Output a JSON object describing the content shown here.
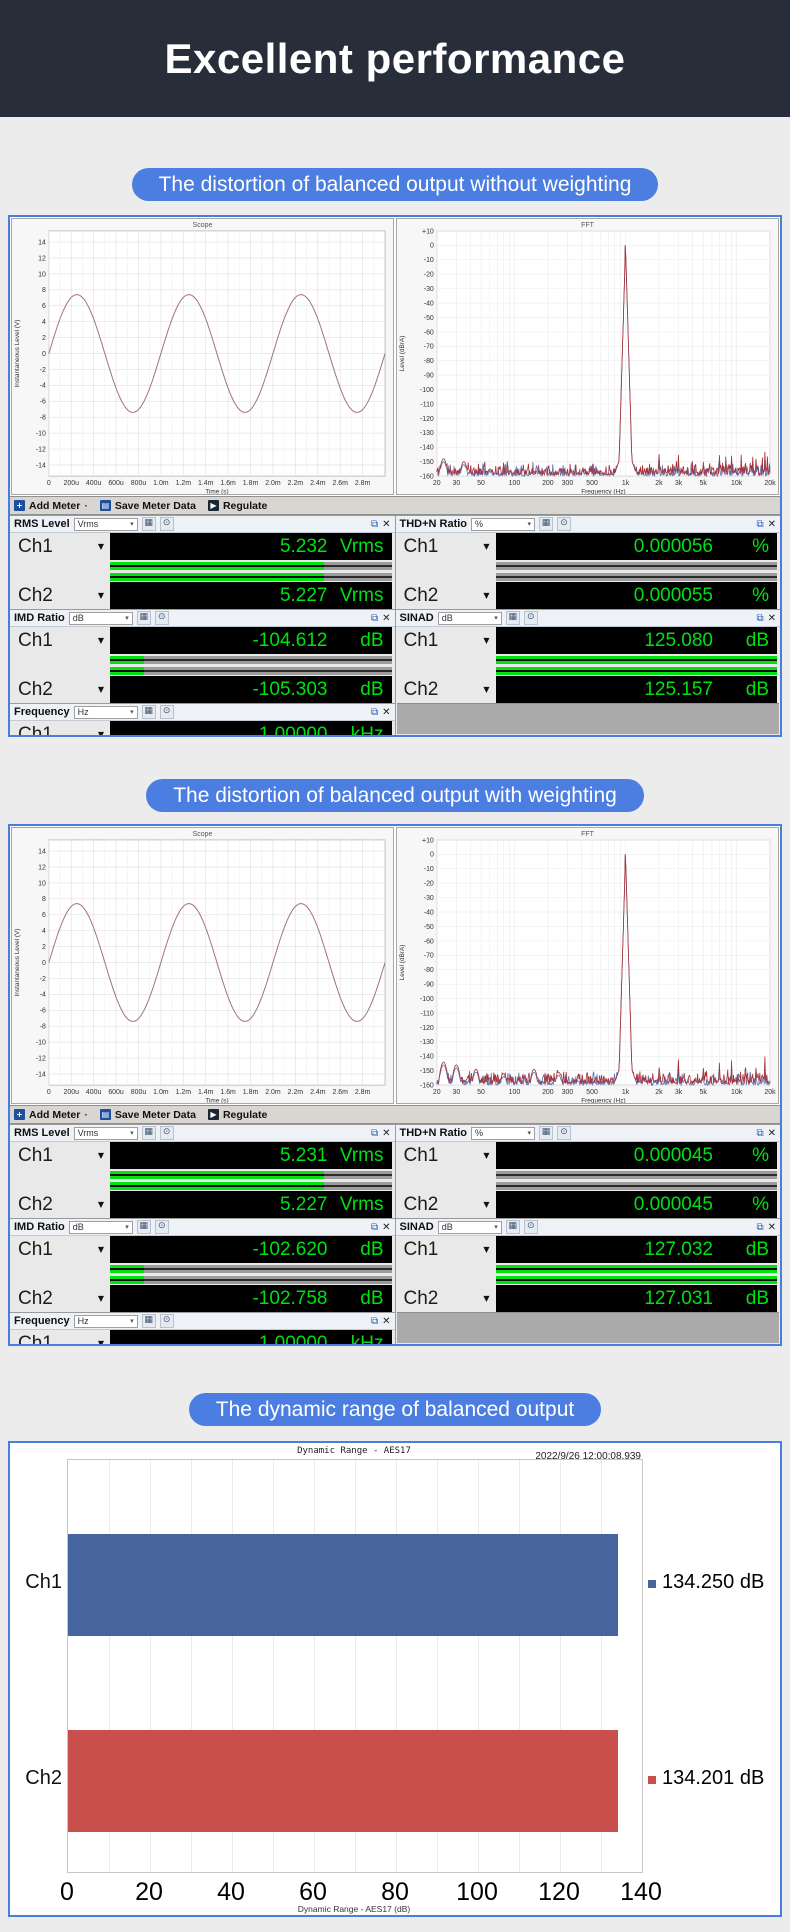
{
  "header": {
    "title": "Excellent performance",
    "background": "#272e3a"
  },
  "theme": {
    "pill_color": "#4c7de0",
    "panel_border": "#4a7edd",
    "lcd_green": "#00e012",
    "page_bg": "#ececec"
  },
  "toolbar": {
    "items": [
      {
        "icon": "add-meter-icon",
        "label": "Add Meter",
        "trailing": "·"
      },
      {
        "icon": "save-meter-icon",
        "label": "Save Meter Data",
        "trailing": ""
      },
      {
        "icon": "regulate-icon",
        "label": "Regulate",
        "trailing": ""
      }
    ]
  },
  "sections": [
    {
      "pill": "The distortion of balanced output without weighting",
      "scope_chart": "scope-unweighted",
      "fft_chart": "fft-unweighted",
      "meters_left": [
        {
          "name": "RMS Level",
          "unit": "Vrms",
          "rows": [
            {
              "ch": "Ch1",
              "value": "5.232",
              "unit": "Vrms",
              "fill": 0.76
            },
            {
              "ch": "Ch2",
              "value": "5.227",
              "unit": "Vrms",
              "fill": 0.76
            }
          ]
        },
        {
          "name": "IMD Ratio",
          "unit": "dB",
          "rows": [
            {
              "ch": "Ch1",
              "value": "-104.612",
              "unit": "dB",
              "fill": 0.12
            },
            {
              "ch": "Ch2",
              "value": "-105.303",
              "unit": "dB",
              "fill": 0.12
            }
          ]
        },
        {
          "name": "Frequency",
          "unit": "Hz",
          "partial": true,
          "rows": [
            {
              "ch": "Ch1",
              "value": "1.00000",
              "unit": "kHz",
              "fill": 0
            }
          ]
        }
      ],
      "meters_right": [
        {
          "name": "THD+N Ratio",
          "unit": "%",
          "rows": [
            {
              "ch": "Ch1",
              "value": "0.000056",
              "unit": "%",
              "fill": 0
            },
            {
              "ch": "Ch2",
              "value": "0.000055",
              "unit": "%",
              "fill": 0
            }
          ]
        },
        {
          "name": "SINAD",
          "unit": "dB",
          "rows": [
            {
              "ch": "Ch1",
              "value": "125.080",
              "unit": "dB",
              "fill": 1
            },
            {
              "ch": "Ch2",
              "value": "125.157",
              "unit": "dB",
              "fill": 1
            }
          ]
        },
        {
          "empty": true
        }
      ]
    },
    {
      "pill": "The distortion of balanced output with weighting",
      "scope_chart": "scope-weighted",
      "fft_chart": "fft-weighted",
      "meters_left": [
        {
          "name": "RMS Level",
          "unit": "Vrms",
          "rows": [
            {
              "ch": "Ch1",
              "value": "5.231",
              "unit": "Vrms",
              "fill": 0.76
            },
            {
              "ch": "Ch2",
              "value": "5.227",
              "unit": "Vrms",
              "fill": 0.76
            }
          ]
        },
        {
          "name": "IMD Ratio",
          "unit": "dB",
          "rows": [
            {
              "ch": "Ch1",
              "value": "-102.620",
              "unit": "dB",
              "fill": 0.12
            },
            {
              "ch": "Ch2",
              "value": "-102.758",
              "unit": "dB",
              "fill": 0.12
            }
          ]
        },
        {
          "name": "Frequency",
          "unit": "Hz",
          "partial": true,
          "rows": [
            {
              "ch": "Ch1",
              "value": "1.00000",
              "unit": "kHz",
              "fill": 0
            }
          ]
        }
      ],
      "meters_right": [
        {
          "name": "THD+N Ratio",
          "unit": "%",
          "rows": [
            {
              "ch": "Ch1",
              "value": "0.000045",
              "unit": "%",
              "fill": 0
            },
            {
              "ch": "Ch2",
              "value": "0.000045",
              "unit": "%",
              "fill": 0
            }
          ]
        },
        {
          "name": "SINAD",
          "unit": "dB",
          "rows": [
            {
              "ch": "Ch1",
              "value": "127.032",
              "unit": "dB",
              "fill": 1
            },
            {
              "ch": "Ch2",
              "value": "127.031",
              "unit": "dB",
              "fill": 1
            }
          ]
        },
        {
          "empty": true
        }
      ]
    }
  ],
  "dynamic_section": {
    "pill": "The dynamic range of balanced output",
    "chart": "dynamic-range"
  },
  "chart_data": [
    {
      "id": "scope-unweighted",
      "type": "line",
      "title": "Scope",
      "xlabel": "Time (s)",
      "ylabel": "Instantaneous Level (V)",
      "waveform": "sine",
      "amplitude_v": 7.4,
      "cycles": 3,
      "x_range_s": [
        0,
        0.003
      ],
      "ylim": [
        -15.4,
        15.4
      ],
      "ytick_labels": [
        "14",
        "12",
        "10",
        "8",
        "6",
        "4",
        "2",
        "0",
        "-2",
        "-4",
        "-6",
        "-8",
        "-10",
        "-12",
        "-14"
      ],
      "xtick_labels": [
        "0",
        "200u",
        "400u",
        "600u",
        "800u",
        "1.0m",
        "1.2m",
        "1.4m",
        "1.6m",
        "1.8m",
        "2.0m",
        "2.2m",
        "2.4m",
        "2.6m",
        "2.8m"
      ],
      "line_color": "#a4717b"
    },
    {
      "id": "fft-unweighted",
      "type": "line",
      "title": "FFT",
      "xlabel": "Frequency (Hz)",
      "ylabel": "Level (dBrA)",
      "x_scale": "log",
      "xlim_hz": [
        20,
        20000
      ],
      "ylim_db": [
        -160,
        10
      ],
      "ytick_labels": [
        "+10",
        "0",
        "-10",
        "-20",
        "-30",
        "-40",
        "-50",
        "-60",
        "-70",
        "-80",
        "-90",
        "-100",
        "-110",
        "-120",
        "-130",
        "-140",
        "-150",
        "-160"
      ],
      "xticks_hz": [
        20,
        30,
        50,
        100,
        200,
        300,
        500,
        1000,
        2000,
        3000,
        5000,
        10000,
        20000
      ],
      "xtick_labels": [
        "20",
        "30",
        "50",
        "100",
        "200",
        "300",
        "500",
        "1k",
        "2k",
        "3k",
        "5k",
        "10k",
        "20k"
      ],
      "fundamental_hz": 1000,
      "peak_db": 0,
      "noise_floor_db": -157,
      "bumps": [
        [
          23,
          -148
        ],
        [
          35,
          -150
        ],
        [
          60,
          -155
        ]
      ],
      "spurs": [
        [
          2000,
          -139
        ],
        [
          3000,
          -142
        ],
        [
          4000,
          -147
        ],
        [
          5000,
          -144
        ],
        [
          6000,
          -147
        ],
        [
          7000,
          -145
        ],
        [
          8000,
          -146
        ],
        [
          9000,
          -144
        ],
        [
          11000,
          -145
        ],
        [
          12000,
          -143
        ],
        [
          14000,
          -144
        ],
        [
          15000,
          -142
        ],
        [
          17000,
          -143
        ],
        [
          18000,
          -142
        ],
        [
          19000,
          -144
        ]
      ],
      "series_colors": {
        "Ch1": "#a83238",
        "Ch2": "#5b6fad"
      },
      "seed": 11
    },
    {
      "id": "scope-weighted",
      "type": "line",
      "title": "Scope",
      "xlabel": "Time (s)",
      "ylabel": "Instantaneous Level (V)",
      "waveform": "sine",
      "amplitude_v": 7.4,
      "cycles": 3,
      "x_range_s": [
        0,
        0.003
      ],
      "ylim": [
        -15.4,
        15.4
      ],
      "ytick_labels": [
        "14",
        "12",
        "10",
        "8",
        "6",
        "4",
        "2",
        "0",
        "-2",
        "-4",
        "-6",
        "-8",
        "-10",
        "-12",
        "-14"
      ],
      "xtick_labels": [
        "0",
        "200u",
        "400u",
        "600u",
        "800u",
        "1.0m",
        "1.2m",
        "1.4m",
        "1.6m",
        "1.8m",
        "2.0m",
        "2.2m",
        "2.4m",
        "2.6m",
        "2.8m"
      ],
      "line_color": "#a4717b"
    },
    {
      "id": "fft-weighted",
      "type": "line",
      "title": "FFT",
      "xlabel": "Frequency (Hz)",
      "ylabel": "Level (dBrA)",
      "x_scale": "log",
      "xlim_hz": [
        20,
        20000
      ],
      "ylim_db": [
        -160,
        10
      ],
      "ytick_labels": [
        "+10",
        "0",
        "-10",
        "-20",
        "-30",
        "-40",
        "-50",
        "-60",
        "-70",
        "-80",
        "-90",
        "-100",
        "-110",
        "-120",
        "-130",
        "-140",
        "-150",
        "-160"
      ],
      "xticks_hz": [
        20,
        30,
        50,
        100,
        200,
        300,
        500,
        1000,
        2000,
        3000,
        5000,
        10000,
        20000
      ],
      "xtick_labels": [
        "20",
        "30",
        "50",
        "100",
        "200",
        "300",
        "500",
        "1k",
        "2k",
        "3k",
        "5k",
        "10k",
        "20k"
      ],
      "fundamental_hz": 1000,
      "peak_db": 0,
      "noise_floor_db": -157,
      "bumps": [
        [
          23,
          -144
        ],
        [
          30,
          -146
        ],
        [
          45,
          -149
        ],
        [
          80,
          -152
        ],
        [
          150,
          -149
        ],
        [
          250,
          -151
        ]
      ],
      "spurs": [
        [
          2000,
          -142
        ],
        [
          3000,
          -139
        ],
        [
          5000,
          -142
        ],
        [
          7000,
          -144
        ],
        [
          9000,
          -141
        ],
        [
          12000,
          -140
        ],
        [
          15000,
          -142
        ],
        [
          18000,
          -139
        ]
      ],
      "series_colors": {
        "Ch1": "#a83238",
        "Ch2": "#5b6fad"
      },
      "seed": 29
    },
    {
      "id": "dynamic-range",
      "type": "bar",
      "orientation": "horizontal",
      "title": "Dynamic Range - AES17",
      "timestamp": "2022/9/26 12:00:08.939",
      "categories": [
        "Ch1",
        "Ch2"
      ],
      "values": [
        134.25,
        134.201
      ],
      "value_labels": [
        "134.250 dB",
        "134.201 dB"
      ],
      "colors": [
        "#46659f",
        "#c94f4c"
      ],
      "xticks": [
        0,
        20,
        40,
        60,
        80,
        100,
        120,
        140
      ],
      "xlim": [
        0,
        140
      ],
      "xlabel": "Dynamic Range - AES17 (dB)",
      "grid": "vertical-minor-10"
    }
  ]
}
